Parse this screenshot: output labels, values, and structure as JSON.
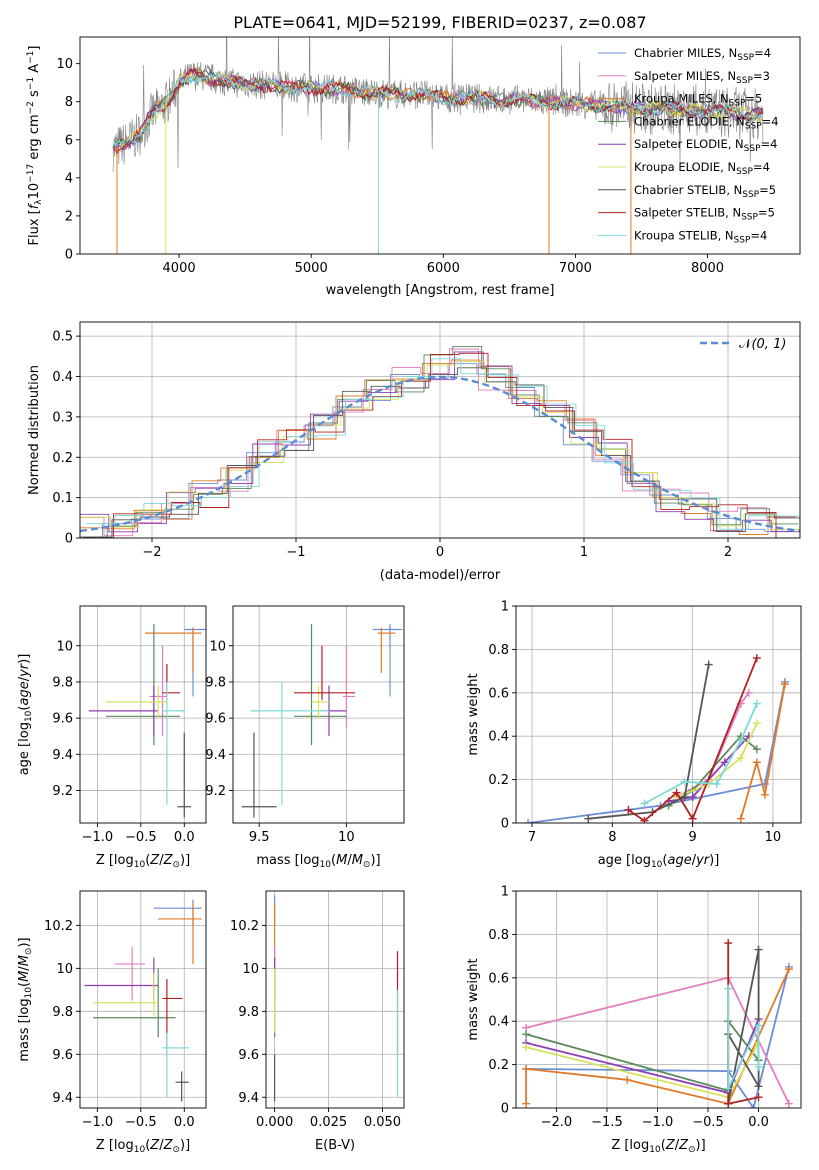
{
  "figure_title": "PLATE=0641, MJD=52199, FIBERID=0237, z=0.087",
  "chart_data": [
    {
      "id": "spectrum",
      "type": "line",
      "title": "PLATE=0641, MJD=52199, FIBERID=0237, z=0.087",
      "xlabel": "wavelength [Angstrom, rest frame]",
      "ylabel": "Flux [f_λ10^-17 erg cm^-2 s^-1 A^-1]",
      "xlim": [
        3250,
        8700
      ],
      "ylim": [
        0,
        11.4
      ],
      "xticks": [
        4000,
        5000,
        6000,
        7000,
        8000
      ],
      "yticks": [
        0,
        2,
        4,
        6,
        8,
        10
      ],
      "grid": false,
      "legend_position": "upper-right",
      "data_color": "#808080",
      "continuum": {
        "x": [
          3500,
          3600,
          3700,
          3800,
          3900,
          4000,
          4100,
          4200,
          4400,
          4600,
          4800,
          5000,
          5200,
          5400,
          5600,
          5800,
          6000,
          6200,
          6400,
          6600,
          6800,
          7000,
          7200,
          7400,
          7600,
          7800,
          8000,
          8200,
          8400
        ],
        "y": [
          5.5,
          5.8,
          6.3,
          7.4,
          7.9,
          9.0,
          9.4,
          9.3,
          9.0,
          8.9,
          8.8,
          8.7,
          8.7,
          8.5,
          8.4,
          8.4,
          8.2,
          8.2,
          8.1,
          8.1,
          8.0,
          7.9,
          7.8,
          7.7,
          7.6,
          7.6,
          7.5,
          7.4,
          7.3
        ]
      },
      "series": [
        {
          "name": "Chabrier MILES, N_SSP=4",
          "color": "#6b8fd6"
        },
        {
          "name": "Salpeter MILES, N_SSP=3",
          "color": "#e07fc0"
        },
        {
          "name": "Kroupa MILES, N_SSP=5",
          "color": "#e07b2a"
        },
        {
          "name": "Chabrier ELODIE, N_SSP=4",
          "color": "#5a8a5a"
        },
        {
          "name": "Salpeter ELODIE, N_SSP=4",
          "color": "#8e3fb0"
        },
        {
          "name": "Kroupa ELODIE, N_SSP=4",
          "color": "#d8e060"
        },
        {
          "name": "Chabrier STELIB, N_SSP=5",
          "color": "#555555"
        },
        {
          "name": "Salpeter STELIB, N_SSP=5",
          "color": "#b22020"
        },
        {
          "name": "Kroupa STELIB, N_SSP=4",
          "color": "#7fd8d8"
        }
      ]
    },
    {
      "id": "residuals",
      "type": "line",
      "xlabel": "(data-model)/error",
      "ylabel": "Normed distribution",
      "xlim": [
        -2.5,
        2.5
      ],
      "ylim": [
        0,
        0.535
      ],
      "xticks": [
        -2,
        -1,
        0,
        1,
        2
      ],
      "yticks": [
        0.0,
        0.1,
        0.2,
        0.3,
        0.4,
        0.5
      ],
      "grid": true,
      "legend_position": "upper-right",
      "legend": [
        {
          "name": "N(0,1)",
          "color": "#5b8bd0",
          "style": "dashed"
        }
      ],
      "bins": [
        -2.5,
        -2.3,
        -2.1,
        -1.9,
        -1.7,
        -1.5,
        -1.3,
        -1.1,
        -0.9,
        -0.7,
        -0.5,
        -0.3,
        -0.1,
        0.1,
        0.3,
        0.5,
        0.7,
        0.9,
        1.1,
        1.3,
        1.5,
        1.7,
        1.9,
        2.1,
        2.3,
        2.5
      ],
      "hist_values": [
        0.03,
        0.04,
        0.06,
        0.08,
        0.11,
        0.15,
        0.21,
        0.24,
        0.28,
        0.34,
        0.36,
        0.39,
        0.42,
        0.44,
        0.4,
        0.35,
        0.31,
        0.26,
        0.21,
        0.14,
        0.1,
        0.08,
        0.05,
        0.04,
        0.03
      ],
      "series_colors": [
        "#6b8fd6",
        "#e07fc0",
        "#e07b2a",
        "#5a8a5a",
        "#8e3fb0",
        "#d8e060",
        "#555555",
        "#b22020",
        "#7fd8d8"
      ]
    },
    {
      "id": "age_vs_Z",
      "type": "scatter",
      "xlabel": "Z [log10(Z/Z☉)]",
      "ylabel": "age [log10(age/yr)]",
      "xlim": [
        -1.2,
        0.25
      ],
      "ylim": [
        9.02,
        10.22
      ],
      "xticks": [
        -1.0,
        -0.5,
        0.0
      ],
      "xtick_labels": [
        "−1.0",
        "−0.5",
        "0.0"
      ],
      "yticks": [
        9.2,
        9.4,
        9.6,
        9.8,
        10.0
      ],
      "grid": true,
      "points": [
        {
          "color": "#6b8fd6",
          "x": 0.1,
          "y": 10.09,
          "xe": [
            0.0,
            0.25
          ],
          "ye": [
            9.72,
            10.1
          ]
        },
        {
          "color": "#e07b2a",
          "x": 0.1,
          "y": 10.07,
          "xe": [
            -0.45,
            0.2
          ],
          "ye": [
            9.85,
            10.1
          ]
        },
        {
          "color": "#e07fc0",
          "x": -0.25,
          "y": 9.72,
          "xe": [
            -0.4,
            -0.2
          ],
          "ye": [
            9.5,
            10.0
          ]
        },
        {
          "color": "#5a8a5a",
          "x": -0.35,
          "y": 9.61,
          "xe": [
            -0.9,
            -0.05
          ],
          "ye": [
            9.45,
            10.12
          ]
        },
        {
          "color": "#8e3fb0",
          "x": -0.35,
          "y": 9.64,
          "xe": [
            -1.1,
            -0.3
          ],
          "ye": [
            9.5,
            9.78
          ]
        },
        {
          "color": "#d8e060",
          "x": -0.3,
          "y": 9.69,
          "xe": [
            -0.9,
            -0.2
          ],
          "ye": [
            9.6,
            9.78
          ]
        },
        {
          "color": "#555555",
          "x": 0.0,
          "y": 9.11,
          "xe": [
            -0.08,
            0.08
          ],
          "ye": [
            9.05,
            9.52
          ]
        },
        {
          "color": "#b22020",
          "x": -0.2,
          "y": 9.74,
          "xe": [
            -0.25,
            -0.05
          ],
          "ye": [
            9.7,
            9.9
          ]
        },
        {
          "color": "#7fd8d8",
          "x": -0.2,
          "y": 9.64,
          "xe": [
            -0.25,
            0.0
          ],
          "ye": [
            9.12,
            9.8
          ]
        }
      ]
    },
    {
      "id": "age_vs_mass",
      "type": "scatter",
      "xlabel": "mass [log10(M/M☉)]",
      "ylabel": "",
      "xlim": [
        9.35,
        10.33
      ],
      "ylim": [
        9.02,
        10.22
      ],
      "xticks": [
        9.5,
        10.0
      ],
      "yticks": [
        9.2,
        9.4,
        9.6,
        9.8,
        10.0
      ],
      "grid": true,
      "points": [
        {
          "color": "#6b8fd6",
          "x": 10.25,
          "y": 10.09,
          "xe": [
            10.15,
            10.32
          ],
          "ye": [
            9.72,
            10.12
          ]
        },
        {
          "color": "#e07b2a",
          "x": 10.2,
          "y": 10.07,
          "xe": [
            10.18,
            10.28
          ],
          "ye": [
            9.85,
            10.1
          ]
        },
        {
          "color": "#e07fc0",
          "x": 10.0,
          "y": 9.72,
          "xe": [
            9.98,
            10.05
          ],
          "ye": [
            9.55,
            10.0
          ]
        },
        {
          "color": "#5a8a5a",
          "x": 9.8,
          "y": 9.61,
          "xe": [
            9.7,
            10.0
          ],
          "ye": [
            9.45,
            10.12
          ]
        },
        {
          "color": "#8e3fb0",
          "x": 9.9,
          "y": 9.64,
          "xe": [
            9.85,
            10.0
          ],
          "ye": [
            9.5,
            9.78
          ]
        },
        {
          "color": "#d8e060",
          "x": 9.84,
          "y": 9.69,
          "xe": [
            9.8,
            9.9
          ],
          "ye": [
            9.6,
            9.78
          ]
        },
        {
          "color": "#555555",
          "x": 9.47,
          "y": 9.11,
          "xe": [
            9.4,
            9.6
          ],
          "ye": [
            9.05,
            9.52
          ]
        },
        {
          "color": "#b22020",
          "x": 9.86,
          "y": 9.74,
          "xe": [
            9.7,
            10.05
          ],
          "ye": [
            9.7,
            10.0
          ]
        },
        {
          "color": "#7fd8d8",
          "x": 9.63,
          "y": 9.64,
          "xe": [
            9.45,
            9.9
          ],
          "ye": [
            9.12,
            9.8
          ]
        }
      ]
    },
    {
      "id": "weight_vs_age",
      "type": "line",
      "xlabel": "age [log10(age/yr)]",
      "ylabel": "mass weight",
      "xlim": [
        6.8,
        10.35
      ],
      "ylim": [
        0,
        1.0
      ],
      "xticks": [
        7,
        8,
        9,
        10
      ],
      "yticks": [
        0.0,
        0.2,
        0.4,
        0.6,
        0.8,
        1.0
      ],
      "grid": true,
      "series": [
        {
          "color": "#6b8fd6",
          "x": [
            6.95,
            8.6,
            9.9,
            10.15
          ],
          "y": [
            0.0,
            0.08,
            0.18,
            0.65
          ]
        },
        {
          "color": "#e07b2a",
          "x": [
            9.6,
            9.8,
            9.9,
            10.15
          ],
          "y": [
            0.02,
            0.28,
            0.13,
            0.64
          ]
        },
        {
          "color": "#e07fc0",
          "x": [
            8.8,
            9.2,
            9.6,
            9.7
          ],
          "y": [
            0.12,
            0.2,
            0.55,
            0.6
          ]
        },
        {
          "color": "#5a8a5a",
          "x": [
            8.7,
            9.0,
            9.6,
            9.8
          ],
          "y": [
            0.08,
            0.15,
            0.4,
            0.34
          ]
        },
        {
          "color": "#8e3fb0",
          "x": [
            8.7,
            9.0,
            9.4,
            9.7
          ],
          "y": [
            0.1,
            0.12,
            0.28,
            0.4
          ]
        },
        {
          "color": "#d8e060",
          "x": [
            8.8,
            9.2,
            9.6,
            9.8
          ],
          "y": [
            0.12,
            0.18,
            0.3,
            0.46
          ]
        },
        {
          "color": "#555555",
          "x": [
            7.7,
            8.5,
            8.9,
            9.2
          ],
          "y": [
            0.02,
            0.05,
            0.12,
            0.73
          ]
        },
        {
          "color": "#b22020",
          "x": [
            8.2,
            8.4,
            8.8,
            9.0,
            9.8
          ],
          "y": [
            0.06,
            0.01,
            0.14,
            0.02,
            0.76
          ]
        },
        {
          "color": "#7fd8d8",
          "x": [
            8.4,
            8.9,
            9.3,
            9.6,
            9.8
          ],
          "y": [
            0.09,
            0.19,
            0.18,
            0.38,
            0.55
          ]
        }
      ]
    },
    {
      "id": "mass_vs_Z",
      "type": "scatter",
      "xlabel": "Z [log10(Z/Z☉)]",
      "ylabel": "mass [log10(M/M☉)]",
      "xlim": [
        -1.2,
        0.25
      ],
      "ylim": [
        9.35,
        10.36
      ],
      "xticks": [
        -1.0,
        -0.5,
        0.0
      ],
      "xtick_labels": [
        "−1.0",
        "−0.5",
        "0.0"
      ],
      "yticks": [
        9.4,
        9.6,
        9.8,
        10.0,
        10.2
      ],
      "grid": true,
      "points": [
        {
          "color": "#6b8fd6",
          "x": 0.1,
          "y": 10.28,
          "xe": [
            -0.35,
            0.2
          ],
          "ye": [
            10.2,
            10.32
          ]
        },
        {
          "color": "#e07b2a",
          "x": 0.1,
          "y": 10.23,
          "xe": [
            -0.3,
            0.2
          ],
          "ye": [
            10.02,
            10.3
          ]
        },
        {
          "color": "#e07fc0",
          "x": -0.6,
          "y": 10.02,
          "xe": [
            -0.8,
            -0.45
          ],
          "ye": [
            9.85,
            10.1
          ]
        },
        {
          "color": "#5a8a5a",
          "x": -0.3,
          "y": 9.77,
          "xe": [
            -1.05,
            -0.1
          ],
          "ye": [
            9.68,
            10.0
          ]
        },
        {
          "color": "#8e3fb0",
          "x": -0.35,
          "y": 9.92,
          "xe": [
            -1.15,
            -0.3
          ],
          "ye": [
            9.85,
            10.05
          ]
        },
        {
          "color": "#d8e060",
          "x": -0.35,
          "y": 9.84,
          "xe": [
            -1.05,
            -0.3
          ],
          "ye": [
            9.78,
            9.98
          ]
        },
        {
          "color": "#555555",
          "x": -0.03,
          "y": 9.47,
          "xe": [
            -0.1,
            0.05
          ],
          "ye": [
            9.38,
            9.52
          ]
        },
        {
          "color": "#b22020",
          "x": -0.2,
          "y": 9.86,
          "xe": [
            -0.25,
            -0.02
          ],
          "ye": [
            9.6,
            9.95
          ]
        },
        {
          "color": "#7fd8d8",
          "x": -0.2,
          "y": 9.63,
          "xe": [
            -0.25,
            0.05
          ],
          "ye": [
            9.4,
            9.7
          ]
        }
      ]
    },
    {
      "id": "mass_vs_ebv",
      "type": "scatter",
      "xlabel": "E(B-V)",
      "ylabel": "",
      "xlim": [
        -0.004,
        0.06
      ],
      "ylim": [
        9.35,
        10.36
      ],
      "xticks": [
        0.0,
        0.025,
        0.05
      ],
      "xtick_labels": [
        "0.000",
        "0.025",
        "0.050"
      ],
      "yticks": [
        9.4,
        9.6,
        9.8,
        10.0,
        10.2
      ],
      "grid": true,
      "points": [
        {
          "color": "#6b8fd6",
          "x": 0.0,
          "y": 10.28,
          "xe": [
            0.0,
            0.0
          ],
          "ye": [
            10.2,
            10.34
          ]
        },
        {
          "color": "#e07b2a",
          "x": 0.0,
          "y": 10.23,
          "xe": [
            0.0,
            0.0
          ],
          "ye": [
            10.02,
            10.3
          ]
        },
        {
          "color": "#e07fc0",
          "x": 0.0,
          "y": 10.02,
          "xe": [
            0.0,
            0.0
          ],
          "ye": [
            9.85,
            10.1
          ]
        },
        {
          "color": "#5a8a5a",
          "x": 0.0,
          "y": 9.77,
          "xe": [
            0.0,
            0.0
          ],
          "ye": [
            9.68,
            10.0
          ]
        },
        {
          "color": "#8e3fb0",
          "x": 0.0,
          "y": 9.92,
          "xe": [
            0.0,
            0.0
          ],
          "ye": [
            9.85,
            10.05
          ]
        },
        {
          "color": "#d8e060",
          "x": 0.0,
          "y": 9.84,
          "xe": [
            0.0,
            0.0
          ],
          "ye": [
            9.7,
            10.0
          ]
        },
        {
          "color": "#555555",
          "x": 0.0,
          "y": 9.47,
          "xe": [
            0.0,
            0.0
          ],
          "ye": [
            9.38,
            9.6
          ]
        },
        {
          "color": "#b22020",
          "x": 0.057,
          "y": 9.86,
          "xe": [
            0.057,
            0.057
          ],
          "ye": [
            9.6,
            10.08
          ]
        },
        {
          "color": "#7fd8d8",
          "x": 0.057,
          "y": 9.63,
          "xe": [
            0.057,
            0.057
          ],
          "ye": [
            9.4,
            9.9
          ]
        }
      ]
    },
    {
      "id": "weight_vs_Z",
      "type": "line",
      "xlabel": "Z [log10(Z/Z☉)]",
      "ylabel": "mass weight",
      "xlim": [
        -2.4,
        0.42
      ],
      "ylim": [
        0,
        1.0
      ],
      "xticks": [
        -2.0,
        -1.5,
        -1.0,
        -0.5,
        0.0
      ],
      "xtick_labels": [
        "−2.0",
        "−1.5",
        "−1.0",
        "−0.5",
        "0.0"
      ],
      "yticks": [
        0.0,
        0.2,
        0.4,
        0.6,
        0.8,
        1.0
      ],
      "grid": true,
      "series": [
        {
          "color": "#6b8fd6",
          "x": [
            -2.3,
            -0.3,
            -0.05,
            0.3
          ],
          "y": [
            0.18,
            0.17,
            0.0,
            0.65
          ]
        },
        {
          "color": "#e07b2a",
          "x": [
            -2.3,
            -2.3,
            -1.3,
            -0.3,
            0.3
          ],
          "y": [
            0.02,
            0.18,
            0.13,
            0.02,
            0.64
          ]
        },
        {
          "color": "#e07fc0",
          "x": [
            -2.3,
            -0.3,
            0.3
          ],
          "y": [
            0.37,
            0.6,
            0.02
          ]
        },
        {
          "color": "#5a8a5a",
          "x": [
            -2.3,
            -0.3,
            -0.3,
            0.0
          ],
          "y": [
            0.34,
            0.08,
            0.4,
            0.22
          ]
        },
        {
          "color": "#8e3fb0",
          "x": [
            -2.3,
            -0.3,
            0.0
          ],
          "y": [
            0.3,
            0.07,
            0.41
          ]
        },
        {
          "color": "#d8e060",
          "x": [
            -2.3,
            -0.3,
            0.0
          ],
          "y": [
            0.28,
            0.05,
            0.3
          ]
        },
        {
          "color": "#555555",
          "x": [
            -0.3,
            0.0,
            0.0,
            -0.3
          ],
          "y": [
            0.02,
            0.73,
            0.1,
            0.34
          ]
        },
        {
          "color": "#b22020",
          "x": [
            -0.3,
            -0.3,
            0.0
          ],
          "y": [
            0.76,
            0.02,
            0.05
          ]
        },
        {
          "color": "#7fd8d8",
          "x": [
            -0.3,
            -0.3,
            0.0,
            0.0
          ],
          "y": [
            0.55,
            0.09,
            0.38,
            0.19
          ]
        }
      ]
    }
  ]
}
